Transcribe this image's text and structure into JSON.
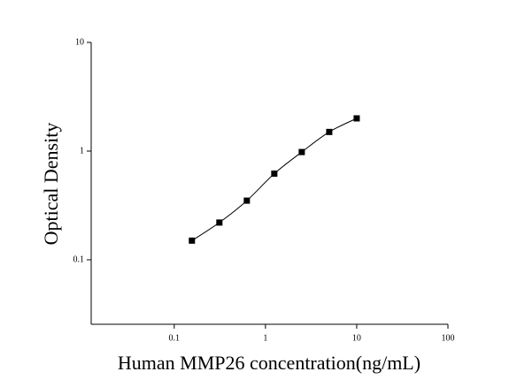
{
  "chart_data": {
    "type": "scatter",
    "x_label": "Human MMP26 concentration(ng/mL)",
    "y_label": "Optical Density",
    "x": [
      0.15625,
      0.3125,
      0.625,
      1.25,
      2.5,
      5,
      10
    ],
    "values": [
      0.15,
      0.22,
      0.35,
      0.62,
      0.98,
      1.5,
      2.0
    ],
    "color": "#000000",
    "xlim": [
      0.0123,
      100
    ],
    "ylim": [
      0.0255,
      10
    ],
    "xticks": [
      0.1,
      1,
      10,
      100
    ],
    "yticks": [
      0.1,
      1,
      10
    ],
    "log_x": true,
    "log_y": true,
    "grid": false,
    "fit_curve": true
  }
}
